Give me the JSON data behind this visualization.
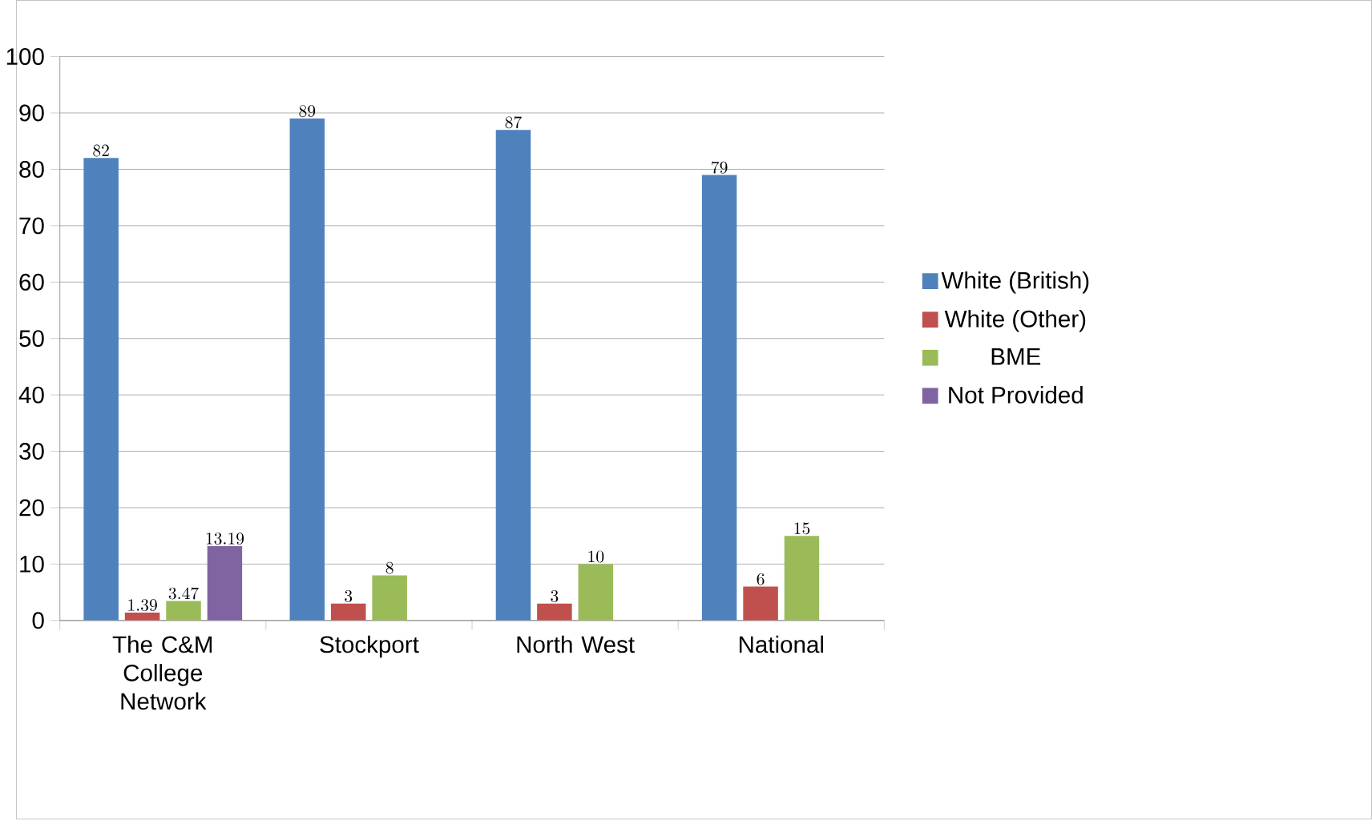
{
  "chart_data": {
    "type": "bar",
    "categories": [
      "The C&M College Network",
      "Stockport",
      "North West",
      "National"
    ],
    "series": [
      {
        "name": "White (British)",
        "color": "#4f81bd",
        "values": [
          82,
          89,
          87,
          79
        ]
      },
      {
        "name": "White (Other)",
        "color": "#c0504d",
        "values": [
          1.39,
          3,
          3,
          6
        ]
      },
      {
        "name": "BME",
        "color": "#9bbb59",
        "values": [
          3.47,
          8,
          10,
          15
        ]
      },
      {
        "name": "Not Provided",
        "color": "#8064a2",
        "values": [
          13.19,
          null,
          null,
          null
        ]
      }
    ],
    "ylim": [
      0,
      100
    ],
    "yticks": [
      0,
      10,
      20,
      30,
      40,
      50,
      60,
      70,
      80,
      90,
      100
    ],
    "grid": "y",
    "legend": "right",
    "data_labels": true
  }
}
